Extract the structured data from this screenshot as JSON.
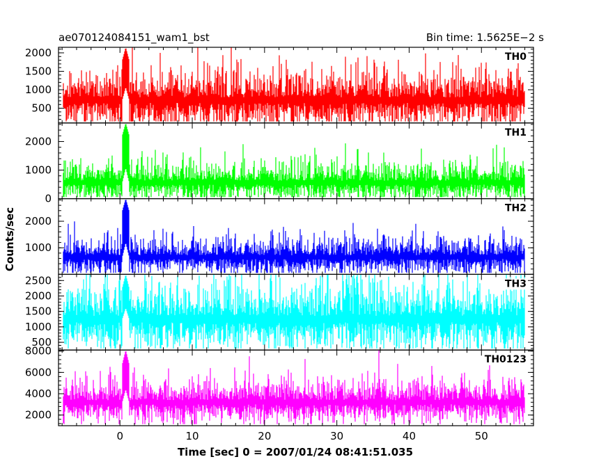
{
  "chart_data": {
    "type": "line",
    "title_left": "ae070124084151_wam1_bst",
    "title_right": "Bin time: 1.5625E−2 s",
    "xlabel": "Time [sec] 0 = 2007/01/24 08:41:51.035",
    "ylabel": "Counts/sec",
    "xlim": [
      -8.5,
      57.2
    ],
    "x_ticks": [
      0,
      10,
      20,
      30,
      40,
      50
    ],
    "x_tick_labels": [
      "0",
      "10",
      "20",
      "30",
      "40",
      "50"
    ],
    "data_x_range": [
      -7.8,
      56.0
    ],
    "burst_time": 0.8,
    "panels": [
      {
        "label": "TH0",
        "color": "#ff0000",
        "ylim": [
          100,
          2150
        ],
        "y_ticks": [
          500,
          1000,
          1500,
          2000
        ],
        "y_tick_labels": [
          "500",
          "1000",
          "1500",
          "2000"
        ],
        "baseline_mean": 720,
        "noise_sd": 250,
        "burst_peak": 2150
      },
      {
        "label": "TH1",
        "color": "#00ff00",
        "ylim": [
          0,
          2650
        ],
        "y_ticks": [
          0,
          1000,
          2000
        ],
        "y_tick_labels": [
          "0",
          "1000",
          "2000"
        ],
        "baseline_mean": 560,
        "noise_sd": 220,
        "burst_peak": 2650
      },
      {
        "label": "TH2",
        "color": "#0000ff",
        "ylim": [
          0,
          2850
        ],
        "y_ticks": [
          1000,
          2000
        ],
        "y_tick_labels": [
          "1000",
          "2000"
        ],
        "baseline_mean": 650,
        "noise_sd": 230,
        "burst_peak": 2850
      },
      {
        "label": "TH3",
        "color": "#00ffff",
        "ylim": [
          250,
          2700
        ],
        "y_ticks": [
          500,
          1000,
          1500,
          2000,
          2500
        ],
        "y_tick_labels": [
          "500",
          "1000",
          "1500",
          "2000",
          "2500"
        ],
        "baseline_mean": 1250,
        "noise_sd": 350,
        "burst_peak": 2700
      },
      {
        "label": "TH0123",
        "color": "#ff00ff",
        "ylim": [
          1000,
          8100
        ],
        "y_ticks": [
          2000,
          4000,
          6000,
          8000
        ],
        "y_tick_labels": [
          "2000",
          "4000",
          "6000",
          "8000"
        ],
        "baseline_mean": 3200,
        "noise_sd": 650,
        "burst_peak": 8100
      }
    ]
  }
}
